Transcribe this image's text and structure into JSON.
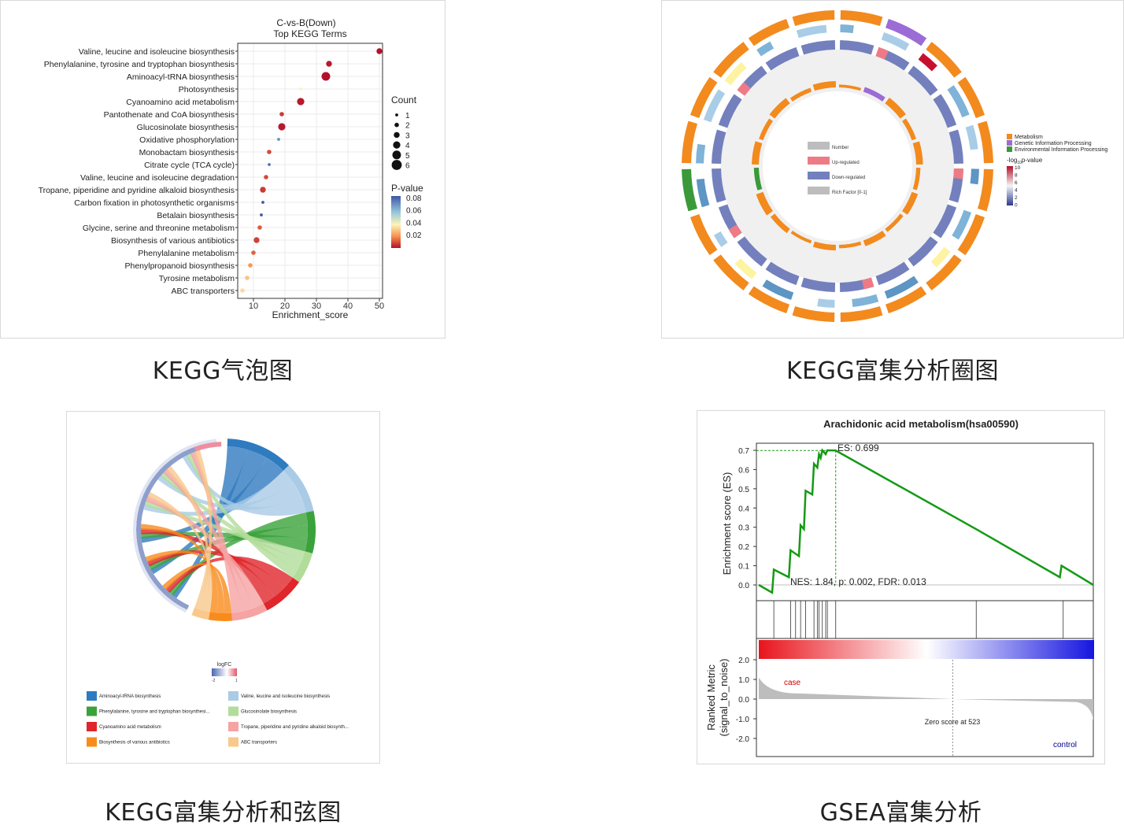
{
  "captions": {
    "bubble": "KEGG气泡图",
    "circos": "KEGG富集分析圈图",
    "chord": "KEGG富集分析和弦图",
    "gsea": "GSEA富集分析"
  },
  "bubble": {
    "title_line1": "C-vs-B(Down)",
    "title_line2": "Top KEGG Terms",
    "count_legend_title": "Count",
    "pvalue_legend_title": "P-value",
    "chart_data": {
      "type": "scatter",
      "xlabel": "Enrichment_score",
      "xlim": [
        5,
        51
      ],
      "xticks": [
        10,
        20,
        30,
        40,
        50
      ],
      "categories": [
        "Valine, leucine and isoleucine biosynthesis",
        "Phenylalanine, tyrosine and tryptophan biosynthesis",
        "Aminoacyl-tRNA biosynthesis",
        "Photosynthesis",
        "Cyanoamino acid metabolism",
        "Pantothenate and CoA biosynthesis",
        "Glucosinolate biosynthesis",
        "Oxidative phosphorylation",
        "Monobactam biosynthesis",
        "Citrate cycle (TCA cycle)",
        "Valine, leucine and isoleucine degradation",
        "Tropane, piperidine and pyridine alkaloid biosynthesis",
        "Carbon fixation in photosynthetic organisms",
        "Betalain biosynthesis",
        "Glycine, serine and threonine metabolism",
        "Biosynthesis of various antibiotics",
        "Phenylalanine metabolism",
        "Phenylpropanoid biosynthesis",
        "Tyrosine metabolism",
        "ABC transporters"
      ],
      "enrichment_score": [
        50,
        34,
        33,
        25,
        25,
        19,
        19,
        18,
        15,
        15,
        14,
        13,
        13,
        12.5,
        12,
        11,
        10,
        9,
        8,
        6.5
      ],
      "count": [
        3,
        3,
        5,
        1,
        4,
        2,
        4,
        1,
        2,
        1,
        2,
        3,
        1,
        1,
        2,
        3,
        2,
        2,
        2,
        2
      ],
      "pvalue": [
        0.005,
        0.006,
        0.004,
        0.04,
        0.006,
        0.01,
        0.006,
        0.07,
        0.012,
        0.075,
        0.012,
        0.01,
        0.08,
        0.08,
        0.014,
        0.011,
        0.015,
        0.022,
        0.03,
        0.035
      ],
      "size_legend": [
        1,
        2,
        3,
        4,
        5,
        6
      ],
      "color_legend_ticks": [
        "0.08",
        "0.06",
        "0.04",
        "0.02"
      ]
    }
  },
  "circos": {
    "legend": {
      "categories": [
        {
          "label": "Metabolism",
          "color": "#f28a1e"
        },
        {
          "label": "Genetic Information Processing",
          "color": "#9b6bd6"
        },
        {
          "label": "Environmental Information Processing",
          "color": "#3a9a3a"
        }
      ],
      "log_title": "-log",
      "log_sub": "10",
      "log_rest": "p-value",
      "log_ticks": [
        "10",
        "8",
        "6",
        "4",
        "2",
        "0"
      ]
    },
    "inner_legend": [
      "Number",
      "Up-regulated",
      "Down-regulated",
      "Rich Factor [0-1]"
    ]
  },
  "chord": {
    "logfc_title": "logFC",
    "logfc_min": "-2",
    "logfc_max": "1",
    "legend": [
      {
        "label": "Aminoacyl-tRNA biosynthesis",
        "color": "#2f7bbf"
      },
      {
        "label": "Valine, leucine and isoleucine biosynthesis",
        "color": "#a9cbe6"
      },
      {
        "label": "Phenylalanine, tyrosine and tryptophan biosynthesi...",
        "color": "#3aa23a"
      },
      {
        "label": "Glucosinolate biosynthesis",
        "color": "#b2dc9a"
      },
      {
        "label": "Cyanoamino acid metabolism",
        "color": "#e0262b"
      },
      {
        "label": "Tropane, piperidine and pyridine alkaloid biosynth...",
        "color": "#f5a3a3"
      },
      {
        "label": "Biosynthesis of various antibiotics",
        "color": "#f98b1c"
      },
      {
        "label": "ABC transporters",
        "color": "#f8c88c"
      }
    ]
  },
  "gsea": {
    "title": "Arachidonic acid metabolism(hsa00590)",
    "es_label": "ES: 0.699",
    "stats_label": "NES: 1.84, p: 0.002, FDR: 0.013",
    "ylabel_top": "Enrichment score (ES)",
    "ylabel_bottom_1": "Ranked Metric",
    "ylabel_bottom_2": "(signal_to_noise)",
    "case_label": "case",
    "control_label": "control",
    "zero_label": "Zero score at 523",
    "chart_data": {
      "type": "line",
      "ylim": [
        0,
        0.7
      ],
      "yticks": [
        "0.0",
        "0.1",
        "0.2",
        "0.3",
        "0.4",
        "0.5",
        "0.6",
        "0.7"
      ],
      "x_fraction": [
        0,
        0.04,
        0.045,
        0.09,
        0.095,
        0.12,
        0.125,
        0.135,
        0.14,
        0.16,
        0.165,
        0.175,
        0.18,
        0.185,
        0.19,
        0.2,
        0.205,
        0.23,
        0.65,
        0.9,
        0.905,
        1.0
      ],
      "es": [
        0.0,
        -0.04,
        0.08,
        0.04,
        0.18,
        0.15,
        0.31,
        0.29,
        0.49,
        0.47,
        0.63,
        0.61,
        0.68,
        0.66,
        0.7,
        0.68,
        0.7,
        0.699,
        0.29,
        0.04,
        0.1,
        0.0
      ],
      "hit_fraction": [
        0.045,
        0.095,
        0.11,
        0.125,
        0.14,
        0.165,
        0.175,
        0.18,
        0.19,
        0.2,
        0.205,
        0.23,
        0.65,
        0.91
      ],
      "metric_yticks": [
        "2.0",
        "1.0",
        "0.0",
        "-1.0",
        "-2.0"
      ]
    }
  }
}
